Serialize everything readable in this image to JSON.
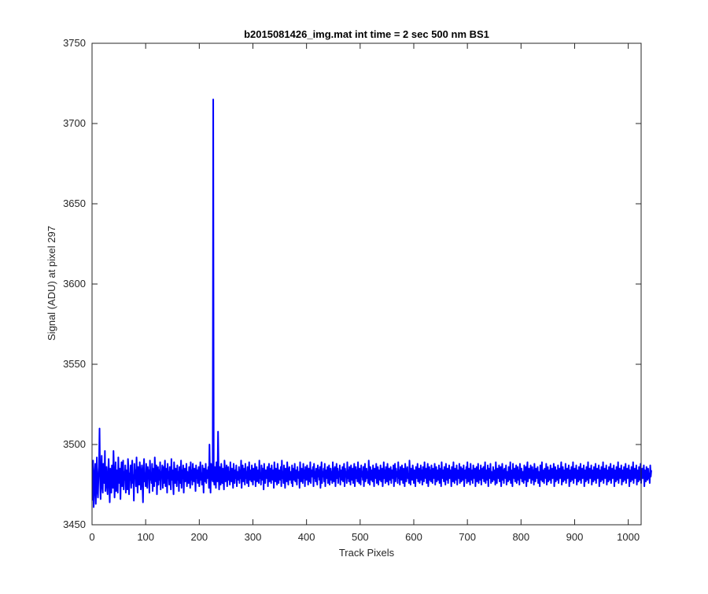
{
  "chart_data": {
    "type": "line",
    "title": "b2015081426_img.mat int time = 2 sec  500 nm BS1",
    "xlabel": "Track Pixels",
    "ylabel": "Signal (ADU) at pixel 297",
    "xlim": [
      0,
      1024
    ],
    "ylim": [
      3450,
      3750
    ],
    "xticks": [
      0,
      100,
      200,
      300,
      400,
      500,
      600,
      700,
      800,
      900,
      1000
    ],
    "yticks": [
      3450,
      3500,
      3550,
      3600,
      3650,
      3700,
      3750
    ],
    "grid": false,
    "legend": "none",
    "series_color": "#0000ff",
    "series": [
      {
        "x_start": 1,
        "x_step": 1,
        "values": [
          3465,
          3490,
          3461,
          3470,
          3483,
          3488,
          3463,
          3476,
          3492,
          3472,
          3467,
          3480,
          3486,
          3510,
          3479,
          3466,
          3484,
          3493,
          3474,
          3470,
          3488,
          3483,
          3476,
          3496,
          3471,
          3480,
          3486,
          3474,
          3469,
          3482,
          3491,
          3477,
          3464,
          3485,
          3481,
          3470,
          3487,
          3479,
          3473,
          3496,
          3483,
          3467,
          3478,
          3489,
          3471,
          3484,
          3477,
          3470,
          3492,
          3480,
          3476,
          3485,
          3466,
          3481,
          3489,
          3474,
          3479,
          3490,
          3472,
          3483,
          3478,
          3487,
          3470,
          3484,
          3479,
          3472,
          3491,
          3485,
          3469,
          3482,
          3478,
          3487,
          3473,
          3484,
          3490,
          3476,
          3481,
          3465,
          3488,
          3479,
          3484,
          3474,
          3492,
          3478,
          3470,
          3486,
          3481,
          3475,
          3489,
          3483,
          3472,
          3480,
          3487,
          3476,
          3464,
          3484,
          3491,
          3477,
          3482,
          3474,
          3488,
          3480,
          3473,
          3486,
          3479,
          3484,
          3470,
          3490,
          3478,
          3482,
          3476,
          3488,
          3471,
          3485,
          3480,
          3474,
          3492,
          3483,
          3477,
          3487,
          3469,
          3481,
          3486,
          3475,
          3484,
          3478,
          3489,
          3472,
          3483,
          3480,
          3487,
          3473,
          3486,
          3476,
          3482,
          3490,
          3474,
          3481,
          3485,
          3470,
          3488,
          3479,
          3483,
          3475,
          3486,
          3480,
          3472,
          3491,
          3478,
          3484,
          3477,
          3469,
          3489,
          3482,
          3476,
          3485,
          3480,
          3474,
          3487,
          3478,
          3483,
          3471,
          3486,
          3481,
          3476,
          3490,
          3473,
          3484,
          3479,
          3487,
          3470,
          3482,
          3485,
          3477,
          3480,
          3488,
          3474,
          3483,
          3479,
          3476,
          3486,
          3481,
          3473,
          3489,
          3478,
          3484,
          3475,
          3488,
          3480,
          3477,
          3485,
          3482,
          3471,
          3487,
          3479,
          3484,
          3476,
          3483,
          3486,
          3474,
          3480,
          3489,
          3478,
          3482,
          3475,
          3487,
          3483,
          3470,
          3485,
          3480,
          3477,
          3488,
          3476,
          3484,
          3479,
          3482,
          3486,
          3473,
          3500,
          3481,
          3470,
          3488,
          3478,
          3484,
          3477,
          3715,
          3479,
          3475,
          3486,
          3482,
          3473,
          3489,
          3481,
          3477,
          3508,
          3484,
          3472,
          3486,
          3480,
          3475,
          3488,
          3483,
          3476,
          3485,
          3479,
          3472,
          3490,
          3484,
          3477,
          3482,
          3487,
          3474,
          3480,
          3486,
          3478,
          3483,
          3475,
          3489,
          3481,
          3477,
          3485,
          3480,
          3473,
          3488,
          3482,
          3476,
          3484,
          3479,
          3487,
          3474,
          3483,
          3481,
          3478,
          3486,
          3476,
          3484,
          3479,
          3490,
          3473,
          3482,
          3487,
          3477,
          3480,
          3485,
          3475,
          3488,
          3479,
          3483,
          3476,
          3486,
          3481,
          3474,
          3489,
          3478,
          3484,
          3480,
          3477,
          3487,
          3482,
          3475,
          3485,
          3480,
          3478,
          3488,
          3474,
          3483,
          3486,
          3477,
          3481,
          3484,
          3476,
          3490,
          3479,
          3482,
          3475,
          3487,
          3483,
          3478,
          3485,
          3472,
          3488,
          3480,
          3476,
          3484,
          3482,
          3479,
          3486,
          3474,
          3483,
          3488,
          3477,
          3481,
          3485,
          3476,
          3487,
          3480,
          3478,
          3484,
          3473,
          3489,
          3482,
          3477,
          3485,
          3480,
          3475,
          3488,
          3483,
          3476,
          3484,
          3481,
          3478,
          3486,
          3474,
          3490,
          3479,
          3483,
          3476,
          3487,
          3481,
          3473,
          3485,
          3480,
          3477,
          3489,
          3482,
          3475,
          3484,
          3486,
          3478,
          3480,
          3483,
          3476,
          3487,
          3474,
          3485,
          3481,
          3478,
          3488,
          3477,
          3482,
          3484,
          3475,
          3486,
          3480,
          3479,
          3483,
          3473,
          3489,
          3481,
          3477,
          3485,
          3482,
          3476,
          3488,
          3479,
          3484,
          3474,
          3486,
          3480,
          3478,
          3487,
          3483,
          3475,
          3485,
          3481,
          3477,
          3489,
          3476,
          3484,
          3480,
          3482,
          3486,
          3474,
          3488,
          3479,
          3483,
          3477,
          3485,
          3481,
          3475,
          3487,
          3480,
          3484,
          3478,
          3486,
          3473,
          3482,
          3489,
          3476,
          3483,
          3480,
          3485,
          3477,
          3488,
          3474,
          3484,
          3481,
          3479,
          3486,
          3476,
          3482,
          3487,
          3475,
          3480,
          3485,
          3478,
          3483,
          3476,
          3489,
          3481,
          3477,
          3484,
          3486,
          3474,
          3482,
          3488,
          3479,
          3485,
          3476,
          3483,
          3480,
          3487,
          3475,
          3484,
          3481,
          3478,
          3486,
          3477,
          3482,
          3488,
          3474,
          3485,
          3480,
          3483,
          3476,
          3489,
          3479,
          3484,
          3477,
          3486,
          3481,
          3475,
          3487,
          3482,
          3478,
          3485,
          3476,
          3483,
          3488,
          3474,
          3480,
          3486,
          3479,
          3484,
          3477,
          3489,
          3481,
          3476,
          3485,
          3482,
          3475,
          3487,
          3480,
          3483,
          3478,
          3486,
          3474,
          3484,
          3488,
          3477,
          3481,
          3485,
          3479,
          3483,
          3476,
          3490,
          3480,
          3475,
          3486,
          3482,
          3478,
          3484,
          3477,
          3487,
          3481,
          3474,
          3485,
          3483,
          3479,
          3488,
          3476,
          3482,
          3486,
          3475,
          3484,
          3480,
          3478,
          3487,
          3477,
          3483,
          3485,
          3474,
          3481,
          3489,
          3479,
          3484,
          3476,
          3486,
          3482,
          3477,
          3488,
          3480,
          3475,
          3485,
          3483,
          3478,
          3486,
          3476,
          3484,
          3481,
          3479,
          3487,
          3474,
          3482,
          3488,
          3477,
          3485,
          3480,
          3483,
          3476,
          3489,
          3479,
          3484,
          3475,
          3486,
          3481,
          3478,
          3487,
          3482,
          3476,
          3485,
          3480,
          3474,
          3488,
          3483,
          3477,
          3484,
          3486,
          3479,
          3481,
          3476,
          3490,
          3482,
          3475,
          3485,
          3480,
          3478,
          3487,
          3483,
          3476,
          3484,
          3481,
          3474,
          3486,
          3482,
          3479,
          3488,
          3477,
          3483,
          3485,
          3476,
          3480,
          3487,
          3478,
          3484,
          3475,
          3486,
          3481,
          3477,
          3489,
          3482,
          3479,
          3485,
          3476,
          3483,
          3488,
          3474,
          3480,
          3486,
          3478,
          3484,
          3477,
          3487,
          3481,
          3476,
          3485,
          3482,
          3479,
          3488,
          3475,
          3483,
          3486,
          3477,
          3480,
          3484,
          3478,
          3487,
          3476,
          3482,
          3485,
          3474,
          3489,
          3481,
          3479,
          3484,
          3477,
          3486,
          3483,
          3475,
          3488,
          3480,
          3478,
          3485,
          3476,
          3482,
          3487,
          3479,
          3484,
          3481,
          3474,
          3486,
          3483,
          3477,
          3489,
          3480,
          3476,
          3485,
          3482,
          3478,
          3487,
          3475,
          3484,
          3481,
          3479,
          3488,
          3476,
          3483,
          3486,
          3477,
          3480,
          3485,
          3478,
          3487,
          3474,
          3482,
          3484,
          3479,
          3486,
          3476,
          3489,
          3481,
          3477,
          3485,
          3483,
          3475,
          3488,
          3480,
          3478,
          3484,
          3476,
          3487,
          3482,
          3479,
          3485,
          3474,
          3483,
          3486,
          3477,
          3481,
          3488,
          3476,
          3484,
          3480,
          3478,
          3487,
          3475,
          3482,
          3485,
          3479,
          3486,
          3477,
          3483,
          3489,
          3476,
          3481,
          3484,
          3478,
          3487,
          3474,
          3485,
          3482,
          3479,
          3488,
          3476,
          3483,
          3480,
          3477,
          3486,
          3481,
          3478,
          3484,
          3475,
          3489,
          3482,
          3476,
          3485,
          3480,
          3479,
          3487,
          3477,
          3483,
          3486,
          3474,
          3481,
          3488,
          3478,
          3484,
          3476,
          3485,
          3482,
          3479,
          3487,
          3475,
          3483,
          3480,
          3477,
          3486,
          3481,
          3478,
          3489,
          3476,
          3484,
          3482,
          3474,
          3488,
          3480,
          3479,
          3485,
          3477,
          3483,
          3487,
          3476,
          3481,
          3486,
          3478,
          3484,
          3475,
          3488,
          3482,
          3479,
          3485,
          3477,
          3483,
          3480,
          3476,
          3487,
          3481,
          3478,
          3486,
          3474,
          3484,
          3489,
          3477,
          3482,
          3485,
          3479,
          3480,
          3487,
          3476,
          3483,
          3486,
          3478,
          3484,
          3475,
          3488,
          3481,
          3477,
          3485,
          3482,
          3479,
          3486,
          3476,
          3483,
          3480,
          3474,
          3487,
          3481,
          3478,
          3489,
          3477,
          3484,
          3482,
          3476,
          3485,
          3480,
          3479,
          3488,
          3475,
          3483,
          3486,
          3477,
          3481,
          3484,
          3478,
          3487,
          3476,
          3482,
          3485,
          3479,
          3480,
          3488,
          3474,
          3483,
          3486,
          3477,
          3484,
          3481,
          3478,
          3487,
          3476,
          3482,
          3485,
          3479,
          3483,
          3489,
          3475,
          3480,
          3486,
          3477,
          3484,
          3482,
          3478,
          3488,
          3476,
          3481,
          3485,
          3479,
          3483,
          3487,
          3474,
          3482,
          3484,
          3477,
          3486,
          3480,
          3478,
          3489,
          3476,
          3483,
          3485,
          3479,
          3481,
          3487,
          3475,
          3484,
          3482,
          3477,
          3486,
          3480,
          3478,
          3488,
          3476,
          3483,
          3485,
          3479,
          3481,
          3487,
          3474,
          3484,
          3482,
          3477,
          3486,
          3480,
          3478,
          3489,
          3476,
          3483,
          3485,
          3479,
          3481,
          3487,
          3475,
          3484,
          3482,
          3477,
          3486,
          3480,
          3478,
          3488,
          3476,
          3483,
          3485,
          3479,
          3481,
          3487,
          3474,
          3484,
          3482,
          3477,
          3486,
          3480,
          3478,
          3489,
          3476,
          3483,
          3485,
          3479,
          3481,
          3487,
          3475,
          3484,
          3482,
          3477,
          3486,
          3480,
          3478,
          3488,
          3476,
          3483,
          3485,
          3479,
          3481,
          3487,
          3474,
          3484,
          3482,
          3477,
          3486,
          3480,
          3478,
          3489,
          3476,
          3483,
          3485,
          3479,
          3481,
          3487,
          3475,
          3484,
          3482,
          3477,
          3486,
          3480,
          3478,
          3488,
          3476,
          3483,
          3485,
          3479,
          3481,
          3487,
          3474,
          3484,
          3482,
          3477,
          3486,
          3480,
          3478,
          3489,
          3476,
          3483,
          3485,
          3479,
          3481,
          3487,
          3475,
          3484,
          3482,
          3477,
          3486,
          3480,
          3478,
          3488,
          3476,
          3483,
          3485,
          3479,
          3481,
          3487,
          3474,
          3484,
          3482,
          3477,
          3486,
          3480,
          3478,
          3485,
          3479,
          3482,
          3476,
          3487,
          3480,
          3484
        ]
      }
    ]
  }
}
